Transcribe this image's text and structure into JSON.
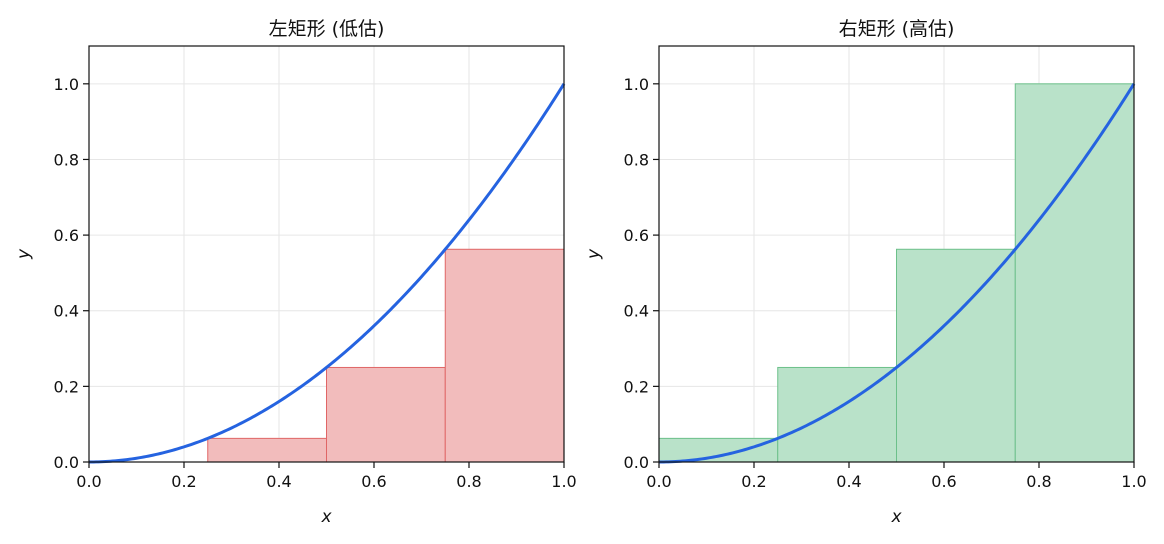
{
  "chart_data": [
    {
      "type": "bar",
      "title": "左矩形 (低估)",
      "xlabel": "x",
      "ylabel": "y",
      "xlim": [
        0,
        1
      ],
      "ylim": [
        0,
        1.1
      ],
      "xticks": [
        "0.0",
        "0.2",
        "0.4",
        "0.6",
        "0.8",
        "1.0"
      ],
      "yticks": [
        "0.0",
        "0.2",
        "0.4",
        "0.6",
        "0.8",
        "1.0"
      ],
      "grid": true,
      "curve": {
        "function": "y = x^2",
        "color": "#2563e0"
      },
      "rectangles": [
        {
          "x0": 0.0,
          "x1": 0.25,
          "height": 0.0
        },
        {
          "x0": 0.25,
          "x1": 0.5,
          "height": 0.0625
        },
        {
          "x0": 0.5,
          "x1": 0.75,
          "height": 0.25
        },
        {
          "x0": 0.75,
          "x1": 1.0,
          "height": 0.5625
        }
      ],
      "rect_fill": "#f2bcbc",
      "rect_edge": "#e06666"
    },
    {
      "type": "bar",
      "title": "右矩形 (高估)",
      "xlabel": "x",
      "ylabel": "y",
      "xlim": [
        0,
        1
      ],
      "ylim": [
        0,
        1.1
      ],
      "xticks": [
        "0.0",
        "0.2",
        "0.4",
        "0.6",
        "0.8",
        "1.0"
      ],
      "yticks": [
        "0.0",
        "0.2",
        "0.4",
        "0.6",
        "0.8",
        "1.0"
      ],
      "grid": true,
      "curve": {
        "function": "y = x^2",
        "color": "#2563e0"
      },
      "rectangles": [
        {
          "x0": 0.0,
          "x1": 0.25,
          "height": 0.0625
        },
        {
          "x0": 0.25,
          "x1": 0.5,
          "height": 0.25
        },
        {
          "x0": 0.5,
          "x1": 0.75,
          "height": 0.5625
        },
        {
          "x0": 0.75,
          "x1": 1.0,
          "height": 1.0
        }
      ],
      "rect_fill": "#b9e2c9",
      "rect_edge": "#6cc08a"
    }
  ]
}
